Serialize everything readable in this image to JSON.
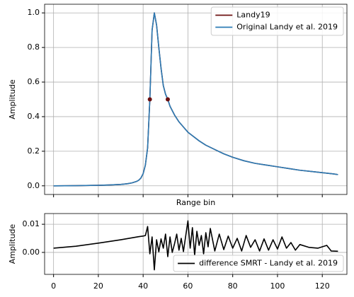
{
  "chart_data": [
    {
      "type": "line",
      "ylabel": "Amplitude",
      "xlabel": "Range bin",
      "x": [
        0,
        10,
        20,
        25,
        30,
        33,
        35,
        37,
        38,
        39,
        40,
        41,
        42,
        43,
        44,
        45,
        46,
        47,
        48,
        49,
        50,
        51,
        52,
        54,
        56,
        58,
        60,
        62,
        65,
        68,
        72,
        76,
        80,
        85,
        90,
        95,
        100,
        105,
        110,
        115,
        120,
        125,
        127
      ],
      "series": [
        {
          "name": "Landy19",
          "color": "#6b1010",
          "values": [
            0,
            0.001,
            0.003,
            0.005,
            0.008,
            0.012,
            0.017,
            0.025,
            0.032,
            0.045,
            0.07,
            0.12,
            0.22,
            0.5,
            0.9,
            1.0,
            0.93,
            0.8,
            0.68,
            0.58,
            0.53,
            0.5,
            0.46,
            0.41,
            0.37,
            0.34,
            0.31,
            0.29,
            0.26,
            0.235,
            0.21,
            0.185,
            0.165,
            0.145,
            0.13,
            0.12,
            0.11,
            0.1,
            0.09,
            0.083,
            0.076,
            0.069,
            0.065
          ]
        },
        {
          "name": "Original Landy et al. 2019",
          "color": "#2b7bb5",
          "values": [
            0,
            0.001,
            0.003,
            0.005,
            0.008,
            0.012,
            0.017,
            0.025,
            0.032,
            0.045,
            0.07,
            0.12,
            0.22,
            0.5,
            0.9,
            1.0,
            0.93,
            0.8,
            0.68,
            0.58,
            0.53,
            0.5,
            0.46,
            0.41,
            0.37,
            0.34,
            0.31,
            0.29,
            0.26,
            0.235,
            0.21,
            0.185,
            0.165,
            0.145,
            0.13,
            0.12,
            0.11,
            0.1,
            0.09,
            0.083,
            0.076,
            0.069,
            0.065
          ]
        }
      ],
      "points": {
        "color": "#6b1010",
        "x": [
          43,
          51
        ],
        "values": [
          0.5,
          0.5
        ]
      },
      "xlim": [
        -4,
        131
      ],
      "xticks": [
        0,
        20,
        40,
        60,
        80,
        100,
        120
      ],
      "show_xtick_labels": false,
      "ylim": [
        -0.05,
        1.05
      ],
      "yticks": [
        {
          "value": 0,
          "label": "0.0"
        },
        0.2,
        0.4,
        0.6,
        0.8,
        {
          "value": 1,
          "label": "1.0"
        }
      ],
      "grid": true,
      "legend": "upper right"
    },
    {
      "type": "line",
      "ylabel": "Amplitude",
      "x": [
        0,
        10,
        20,
        30,
        38,
        40,
        41,
        42,
        43,
        44,
        45,
        46,
        47,
        48,
        49,
        50,
        51,
        52,
        53,
        54,
        55,
        56,
        57,
        58,
        59,
        60,
        61,
        62,
        63,
        64,
        65,
        66,
        67,
        68,
        69,
        70,
        72,
        74,
        76,
        78,
        80,
        82,
        84,
        86,
        88,
        90,
        92,
        94,
        96,
        98,
        100,
        102,
        104,
        106,
        108,
        110,
        114,
        118,
        122,
        124,
        127
      ],
      "series": [
        {
          "name": "difference SMRT - Landy et al. 2019",
          "color": "#000000",
          "values": [
            0.0015,
            0.0022,
            0.0033,
            0.0045,
            0.0056,
            0.0058,
            0.006,
            0.0092,
            -0.0005,
            0.0055,
            -0.0062,
            0.0045,
            0.0002,
            0.0048,
            0.0015,
            0.0065,
            -0.0015,
            0.0055,
            0.0,
            0.003,
            0.0065,
            0.0008,
            0.005,
            0.0003,
            0.0058,
            0.0112,
            0.0015,
            0.0088,
            -0.001,
            0.0075,
            0.0025,
            0.006,
            -0.0005,
            0.007,
            0.002,
            0.0085,
            0.0005,
            0.0065,
            0.001,
            0.0058,
            0.0015,
            0.005,
            0.0005,
            0.006,
            0.0018,
            0.0045,
            0.0005,
            0.0048,
            0.0008,
            0.0045,
            0.0012,
            0.0055,
            0.0015,
            0.0035,
            0.0008,
            0.0028,
            0.0018,
            0.0015,
            0.0025,
            0.0005,
            0.0004
          ]
        }
      ],
      "xlim": [
        -4,
        131
      ],
      "xticks": [
        0,
        20,
        40,
        60,
        80,
        100,
        120
      ],
      "show_xtick_labels": true,
      "ylim": [
        -0.0078,
        0.0138
      ],
      "yticks": [
        {
          "value": 0,
          "label": "0.00"
        },
        {
          "value": 0.01,
          "label": "0.01"
        }
      ],
      "grid": true,
      "legend": "lower right"
    }
  ]
}
